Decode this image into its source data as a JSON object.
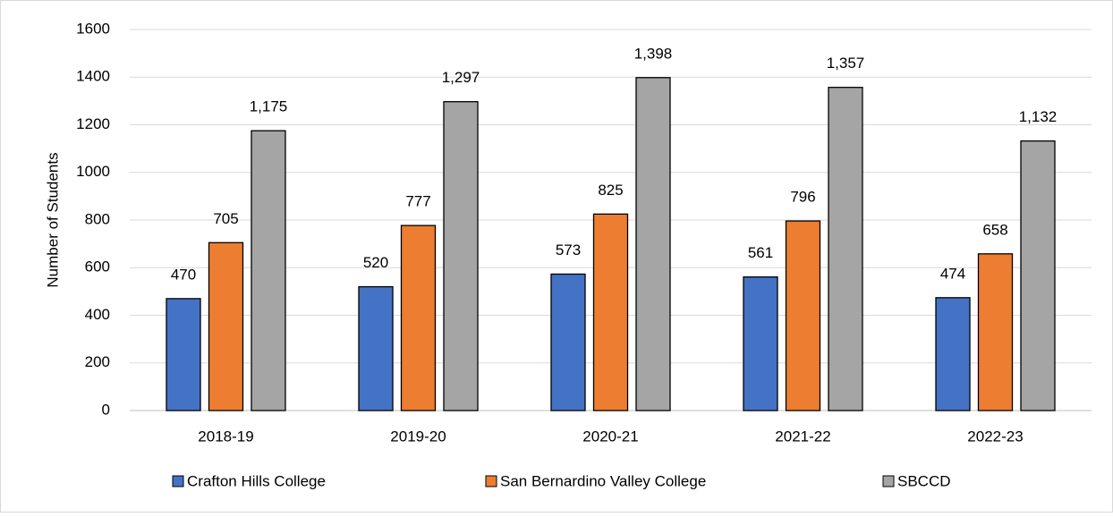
{
  "chart_data": {
    "type": "bar",
    "y_label": "Number of Students",
    "categories": [
      "2018-19",
      "2019-20",
      "2020-21",
      "2021-22",
      "2022-23"
    ],
    "series": [
      {
        "name": "Crafton Hills College",
        "color": "#4472c4",
        "values": [
          470,
          520,
          573,
          561,
          474
        ]
      },
      {
        "name": "San Bernardino Valley College",
        "color": "#ed7d31",
        "values": [
          705,
          777,
          825,
          796,
          658
        ]
      },
      {
        "name": "SBCCD",
        "color": "#a5a5a5",
        "values": [
          1175,
          1297,
          1398,
          1357,
          1132
        ],
        "value_labels": [
          "1,175",
          "1,297",
          "1,398",
          "1,357",
          "1,132"
        ]
      }
    ],
    "ylim": [
      0,
      1600
    ],
    "yticks": [
      0,
      200,
      400,
      600,
      800,
      1000,
      1200,
      1400,
      1600
    ],
    "grid": true
  }
}
